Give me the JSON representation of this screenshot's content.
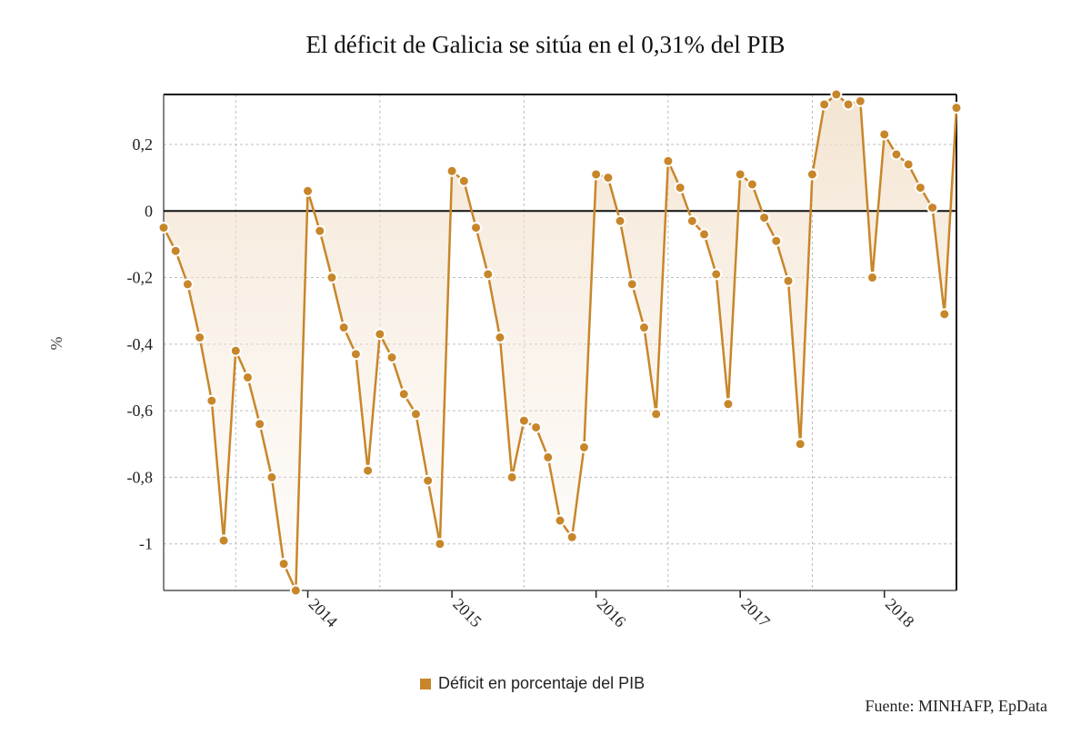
{
  "chart_data": {
    "type": "area",
    "title": "El déficit de Galicia se sitúa en el 0,31% del PIB",
    "ylabel": "%",
    "xlabel": "",
    "ylim": [
      -1.14,
      0.35
    ],
    "yticks": [
      0.2,
      0,
      -0.2,
      -0.4,
      -0.6,
      -0.8,
      -1
    ],
    "ytick_labels": [
      "0,2",
      "0",
      "-0,2",
      "-0,4",
      "-0,6",
      "-0,8",
      "-1"
    ],
    "xticks": [
      {
        "label": "2014",
        "month_index": 12
      },
      {
        "label": "2015",
        "month_index": 24
      },
      {
        "label": "2016",
        "month_index": 36
      },
      {
        "label": "2017",
        "month_index": 48
      },
      {
        "label": "2018",
        "month_index": 60
      }
    ],
    "grid": true,
    "legend_position": "bottom",
    "series": [
      {
        "name": "Déficit en porcentaje del PIB",
        "color": "#C8862A",
        "values": [
          -0.05,
          -0.12,
          -0.22,
          -0.38,
          -0.57,
          -0.99,
          -0.42,
          -0.5,
          -0.64,
          -0.8,
          -1.06,
          -1.14,
          0.06,
          -0.06,
          -0.2,
          -0.35,
          -0.43,
          -0.78,
          -0.37,
          -0.44,
          -0.55,
          -0.61,
          -0.81,
          -1.0,
          0.12,
          0.09,
          -0.05,
          -0.19,
          -0.38,
          -0.8,
          -0.63,
          -0.65,
          -0.74,
          -0.93,
          -0.98,
          -0.71,
          0.11,
          0.1,
          -0.03,
          -0.22,
          -0.35,
          -0.61,
          0.15,
          0.07,
          -0.03,
          -0.07,
          -0.19,
          -0.58,
          0.11,
          0.08,
          -0.02,
          -0.09,
          -0.21,
          -0.7,
          0.11,
          0.32,
          0.35,
          0.32,
          0.33,
          -0.2,
          0.23,
          0.17,
          0.14,
          0.07,
          0.01,
          -0.31,
          0.31
        ]
      }
    ],
    "source": "Fuente: MINHAFP, EpData"
  }
}
